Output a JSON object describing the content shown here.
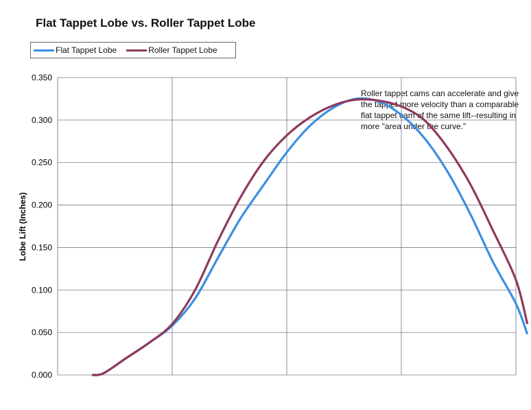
{
  "chart_data": {
    "type": "line",
    "title": "Flat Tappet Lobe vs. Roller Tappet Lobe",
    "ylabel": "Lobe Lift (Inches)",
    "xlabel": "",
    "ylim": [
      0,
      0.35
    ],
    "xlim": [
      0,
      20
    ],
    "yticks": [
      "0.000",
      "0.050",
      "0.100",
      "0.150",
      "0.200",
      "0.250",
      "0.300",
      "0.350"
    ],
    "grid": true,
    "legend_position": "top-left",
    "annotation": "Roller tappet cams can accelerate and give the tappet more velocity than a comparable flat tappet cam of the same lift--resulting in more \"area under the curve.\"",
    "series": [
      {
        "name": "Flat Tappet Lobe",
        "color": "#3b8fe0",
        "x": [
          1.5,
          2,
          3,
          4,
          5,
          6,
          7,
          8,
          9,
          10,
          11,
          12,
          13,
          14,
          15,
          16,
          17,
          18,
          19,
          20,
          20.5
        ],
        "values": [
          0.0,
          0.002,
          0.02,
          0.038,
          0.058,
          0.09,
          0.138,
          0.185,
          0.224,
          0.262,
          0.293,
          0.314,
          0.325,
          0.322,
          0.306,
          0.279,
          0.24,
          0.19,
          0.133,
          0.084,
          0.048
        ]
      },
      {
        "name": "Roller Tappet Lobe",
        "color": "#8e3a5c",
        "x": [
          1.5,
          2,
          3,
          4,
          5,
          6,
          7,
          8,
          9,
          10,
          11,
          12,
          13,
          14,
          15,
          16,
          17,
          18,
          19,
          20,
          20.5
        ],
        "values": [
          0.0,
          0.002,
          0.02,
          0.038,
          0.06,
          0.1,
          0.158,
          0.21,
          0.252,
          0.282,
          0.303,
          0.317,
          0.324,
          0.323,
          0.316,
          0.3,
          0.268,
          0.225,
          0.17,
          0.112,
          0.06
        ]
      }
    ]
  }
}
